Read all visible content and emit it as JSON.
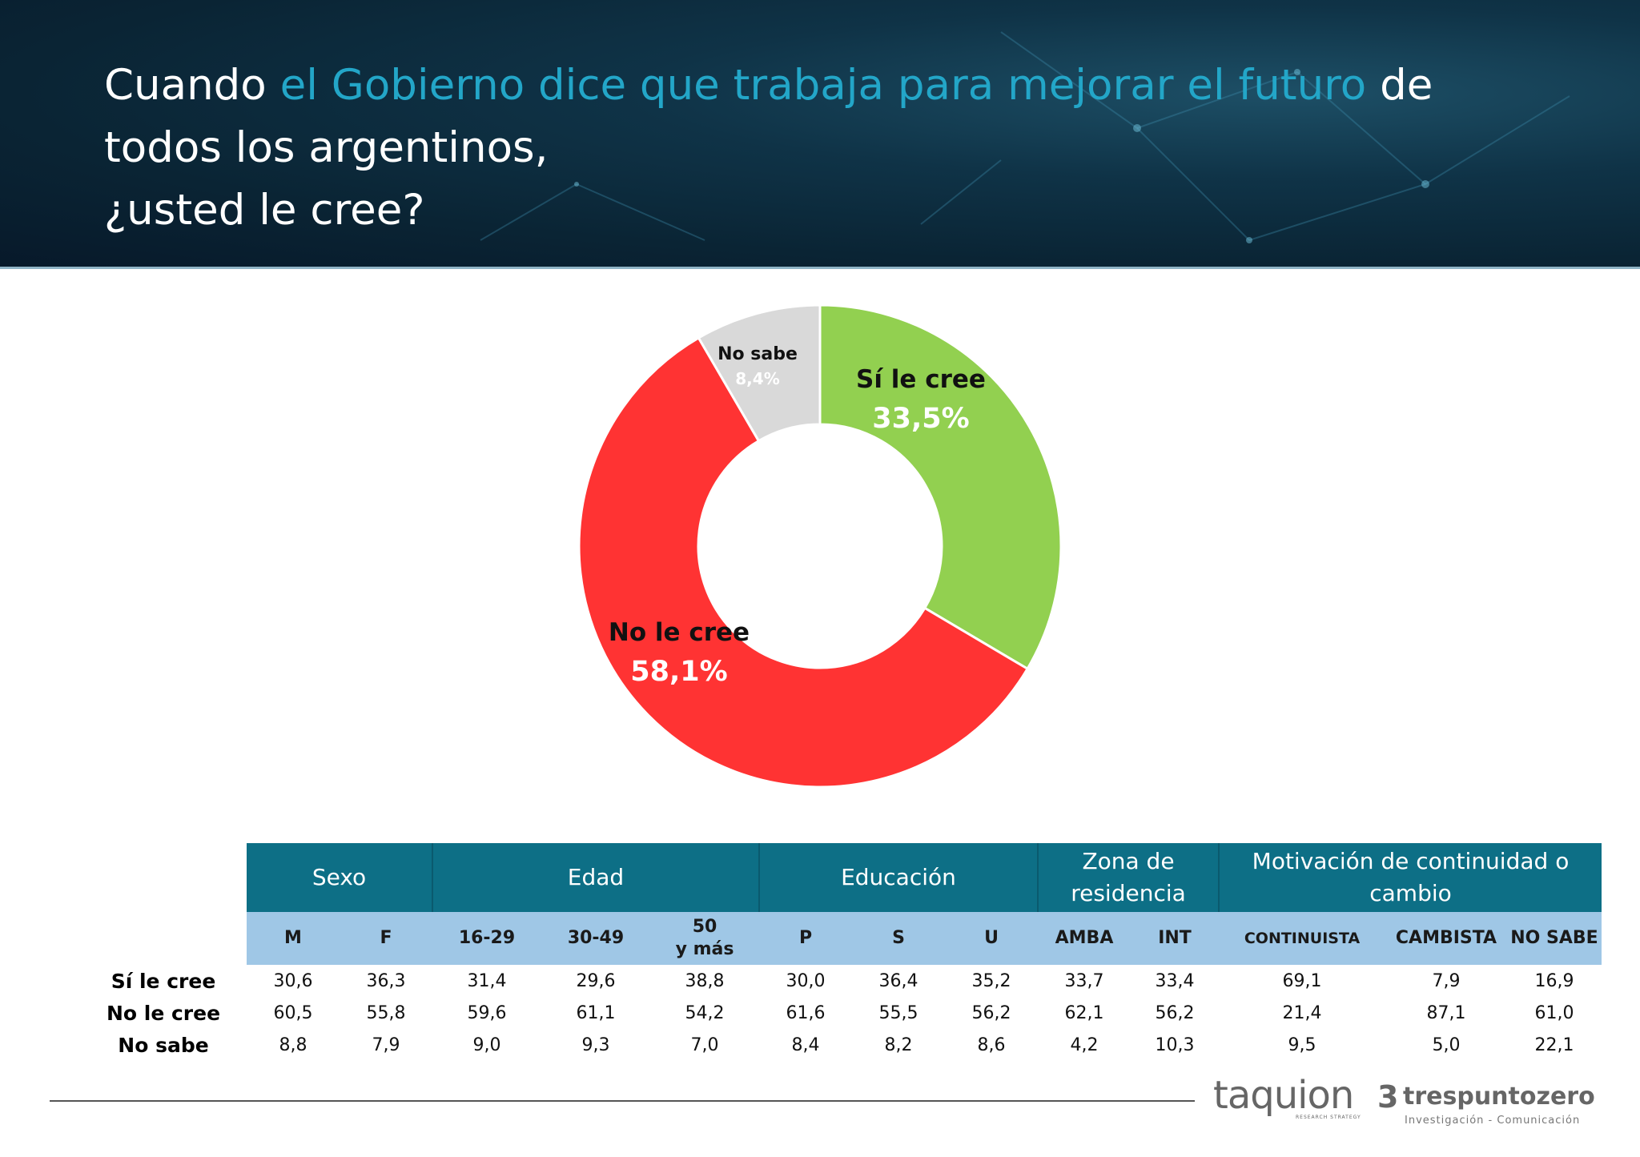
{
  "title": {
    "part1": "Cuando ",
    "highlight": "el Gobierno dice que trabaja para mejorar el futuro",
    "part2": " de todos los argentinos,",
    "line3": "¿usted le cree?"
  },
  "colors": {
    "header_bg": "#0a2434",
    "highlight": "#23a6c8",
    "table_group": "#0d6f86",
    "table_sub": "#9fc7e6"
  },
  "chart_data": {
    "type": "pie",
    "donut": true,
    "slices": [
      {
        "label": "Sí le cree",
        "value": 33.5,
        "display": "33,5%",
        "color": "#92d050"
      },
      {
        "label": "No le cree",
        "value": 58.1,
        "display": "58,1%",
        "color": "#ff3333"
      },
      {
        "label": "No sabe",
        "value": 8.4,
        "display": "8,4%",
        "color": "#d9d9d9"
      }
    ]
  },
  "table": {
    "groups": [
      {
        "label": "Sexo",
        "span": 2
      },
      {
        "label": "Edad",
        "span": 3
      },
      {
        "label": "Educación",
        "span": 3
      },
      {
        "label": "Zona de residencia",
        "span": 2
      },
      {
        "label": "Motivación de continuidad o cambio",
        "span": 3
      }
    ],
    "columns": [
      "M",
      "F",
      "16-29",
      "30-49",
      "50 y más",
      "P",
      "S",
      "U",
      "AMBA",
      "INT",
      "CONTINUISTA",
      "CAMBISTA",
      "NO SABE"
    ],
    "rows": [
      {
        "label": "Sí le cree",
        "values": [
          "30,6",
          "36,3",
          "31,4",
          "29,6",
          "38,8",
          "30,0",
          "36,4",
          "35,2",
          "33,7",
          "33,4",
          "69,1",
          "7,9",
          "16,9"
        ]
      },
      {
        "label": "No le cree",
        "values": [
          "60,5",
          "55,8",
          "59,6",
          "61,1",
          "54,2",
          "61,6",
          "55,5",
          "56,2",
          "62,1",
          "56,2",
          "21,4",
          "87,1",
          "61,0"
        ]
      },
      {
        "label": "No sabe",
        "values": [
          "8,8",
          "7,9",
          "9,0",
          "9,3",
          "7,0",
          "8,4",
          "8,2",
          "8,6",
          "4,2",
          "10,3",
          "9,5",
          "5,0",
          "22,1"
        ]
      }
    ]
  },
  "logos": {
    "taquion": "taquion",
    "taquion_sub": "RESEARCH STRATEGY",
    "tres_mark": "3",
    "tres": "trespuntozero",
    "tres_sub": "Investigación - Comunicación"
  }
}
